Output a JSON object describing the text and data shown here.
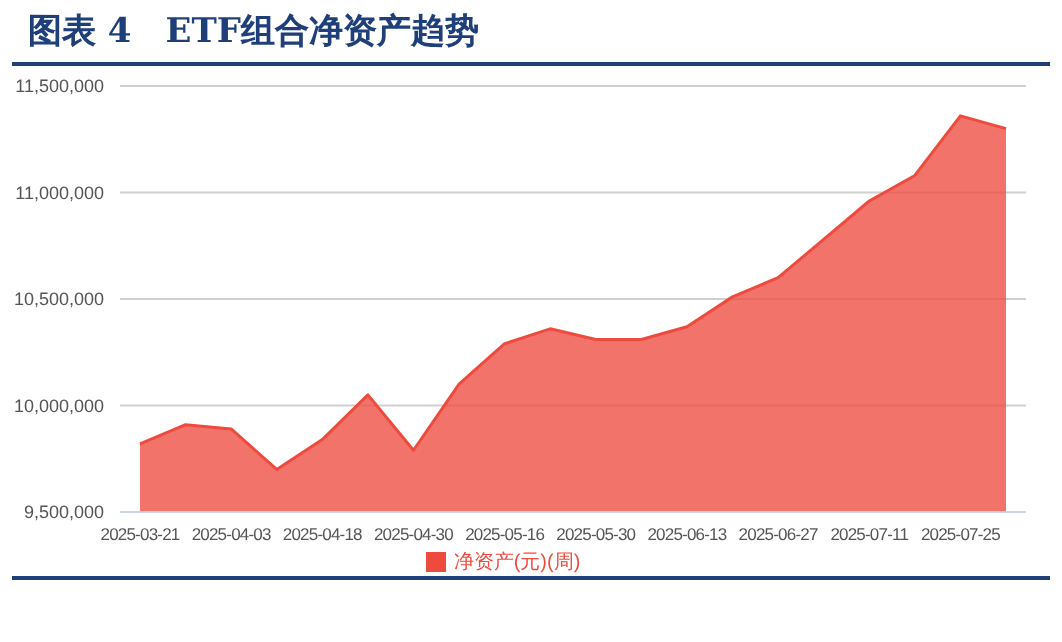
{
  "chart_data": {
    "type": "area",
    "title": "图表 4　ETF组合净资产趋势",
    "categories": [
      "2025-03-21",
      null,
      "2025-04-03",
      null,
      "2025-04-18",
      null,
      "2025-04-30",
      null,
      "2025-05-16",
      null,
      "2025-05-30",
      null,
      "2025-06-13",
      null,
      "2025-06-27",
      null,
      "2025-07-11",
      null,
      "2025-07-25",
      null
    ],
    "series": [
      {
        "name": "净资产(元)(周)",
        "color": "#ee4b3f",
        "values": [
          9820000,
          9910000,
          9890000,
          9700000,
          9840000,
          10050000,
          9790000,
          10100000,
          10290000,
          10360000,
          10310000,
          10310000,
          10370000,
          10510000,
          10600000,
          10780000,
          10960000,
          11080000,
          11360000,
          11300000
        ]
      }
    ],
    "ylim": [
      9500000,
      11500000
    ],
    "yticks": [
      {
        "value": 9500000,
        "label": "9,500,000"
      },
      {
        "value": 10000000,
        "label": "10,000,000"
      },
      {
        "value": 10500000,
        "label": "10,500,000"
      },
      {
        "value": 11000000,
        "label": "11,000,000"
      },
      {
        "value": 11500000,
        "label": "11,500,000"
      }
    ],
    "grid": "y",
    "legend": "bottom"
  }
}
